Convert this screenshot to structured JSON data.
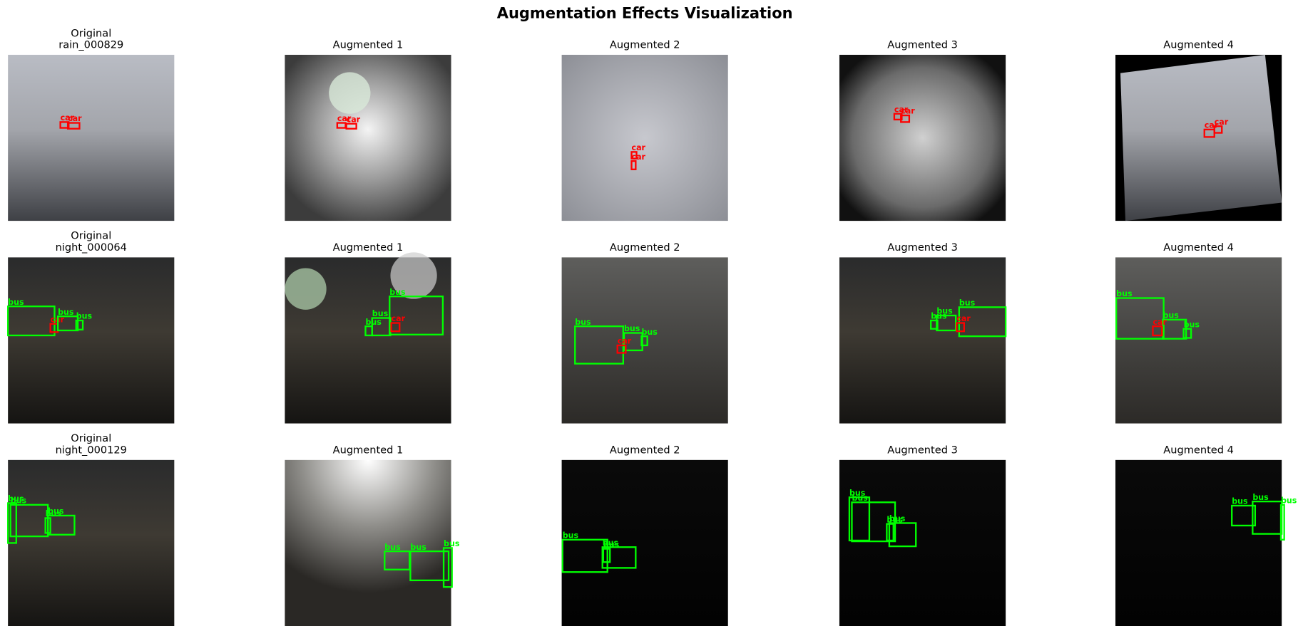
{
  "title": "Augmentation Effects Visualization",
  "box_colors": {
    "car": "#ff0000",
    "bus": "#00ff00"
  },
  "rows": [
    [
      {
        "title": [
          "Original",
          "rain_000829"
        ],
        "boxes": [
          "car",
          "car"
        ]
      },
      {
        "title": [
          "Augmented 1"
        ],
        "boxes": [
          "car",
          "car"
        ]
      },
      {
        "title": [
          "Augmented 2"
        ],
        "boxes": [
          "car",
          "car"
        ]
      },
      {
        "title": [
          "Augmented 3"
        ],
        "boxes": [
          "car",
          "car"
        ]
      },
      {
        "title": [
          "Augmented 4"
        ],
        "boxes": [
          "car",
          "car"
        ]
      }
    ],
    [
      {
        "title": [
          "Original",
          "night_000064"
        ],
        "boxes": [
          "bus",
          "car",
          "bus",
          "bus"
        ]
      },
      {
        "title": [
          "Augmented 1"
        ],
        "boxes": [
          "bus",
          "bus",
          "bus",
          "car"
        ]
      },
      {
        "title": [
          "Augmented 2"
        ],
        "boxes": [
          "bus",
          "bus",
          "bus",
          "car"
        ]
      },
      {
        "title": [
          "Augmented 3"
        ],
        "boxes": [
          "bus",
          "bus",
          "bus",
          "car"
        ]
      },
      {
        "title": [
          "Augmented 4"
        ],
        "boxes": [
          "bus",
          "bus",
          "bus",
          "car"
        ]
      }
    ],
    [
      {
        "title": [
          "Original",
          "night_000129"
        ],
        "boxes": [
          "bus",
          "bus",
          "bus",
          "bus"
        ]
      },
      {
        "title": [
          "Augmented 1"
        ],
        "boxes": [
          "bus",
          "bus",
          "bus"
        ]
      },
      {
        "title": [
          "Augmented 2"
        ],
        "boxes": [
          "bus",
          "bus",
          "bus"
        ]
      },
      {
        "title": [
          "Augmented 3"
        ],
        "boxes": [
          "bus",
          "bus",
          "bus",
          "bus"
        ]
      },
      {
        "title": [
          "Augmented 4"
        ],
        "boxes": [
          "bus",
          "bus",
          "bus"
        ]
      }
    ]
  ]
}
